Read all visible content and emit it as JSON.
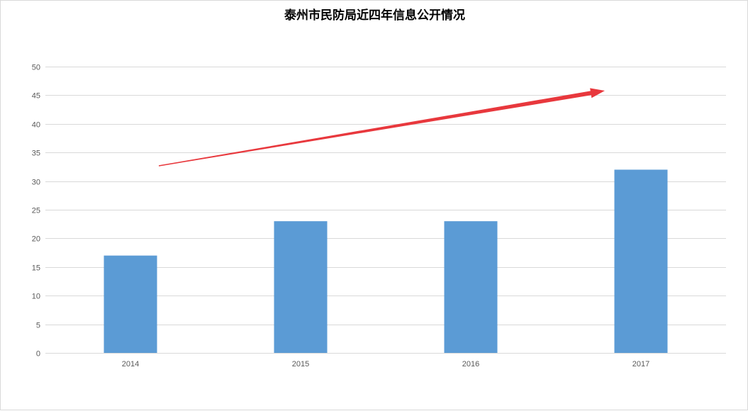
{
  "chart_data": {
    "type": "bar",
    "title": "泰州市民防局近四年信息公开情况",
    "categories": [
      "2014",
      "2015",
      "2016",
      "2017"
    ],
    "values": [
      17,
      23,
      23,
      32
    ],
    "xlabel": "",
    "ylabel": "",
    "ylim": [
      0,
      50
    ],
    "yticks": [
      0,
      5,
      10,
      15,
      20,
      25,
      30,
      35,
      40,
      45,
      50
    ],
    "grid": true,
    "legend": "none",
    "annotation": "trend-arrow-up-right"
  },
  "colors": {
    "bar": "#5b9bd5",
    "grid": "#d9d9d9",
    "tick_text": "#595959",
    "arrow": "#e8383d"
  }
}
